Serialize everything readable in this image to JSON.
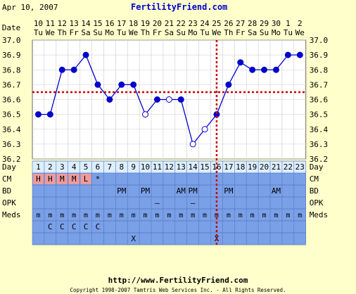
{
  "header": {
    "date": "Apr 10, 2007",
    "site": "FertilityFriend.com"
  },
  "chart_data": {
    "type": "line",
    "title": "",
    "xlabel": "Day",
    "ylabel": "",
    "ylim": [
      36.2,
      37.0
    ],
    "y_ticks": [
      "37.0",
      "36.9",
      "36.8",
      "36.7",
      "36.6",
      "36.5",
      "36.4",
      "36.3",
      "36.2"
    ],
    "dates": [
      "10",
      "11",
      "12",
      "13",
      "14",
      "15",
      "16",
      "17",
      "18",
      "19",
      "20",
      "21",
      "22",
      "23",
      "24",
      "25",
      "26",
      "27",
      "28",
      "29",
      "30",
      "1",
      "2"
    ],
    "weekdays": [
      "Tu",
      "We",
      "Th",
      "Fr",
      "Sa",
      "Su",
      "Mo",
      "Tu",
      "We",
      "Th",
      "Fr",
      "Sa",
      "Su",
      "Mo",
      "Tu",
      "We",
      "Th",
      "Fr",
      "Sa",
      "Su",
      "Mo",
      "Tu",
      "We"
    ],
    "days": [
      "1",
      "2",
      "3",
      "4",
      "5",
      "6",
      "7",
      "8",
      "9",
      "10",
      "11",
      "12",
      "13",
      "14",
      "15",
      "16",
      "17",
      "18",
      "19",
      "20",
      "21",
      "22",
      "23"
    ],
    "temps": [
      36.5,
      36.5,
      36.8,
      36.8,
      36.9,
      36.7,
      36.6,
      36.7,
      36.7,
      36.5,
      36.6,
      36.6,
      36.6,
      36.3,
      36.4,
      36.5,
      36.7,
      36.85,
      36.8,
      36.8,
      36.8,
      36.9,
      36.9
    ],
    "discarded": [
      false,
      false,
      false,
      false,
      false,
      false,
      false,
      false,
      false,
      true,
      false,
      true,
      false,
      true,
      true,
      false,
      false,
      false,
      false,
      false,
      false,
      false,
      false
    ],
    "coverline": 36.65,
    "ovulation_day": 16,
    "rows": [
      {
        "label": "CM",
        "values": [
          "H",
          "H",
          "M",
          "M",
          "L",
          "*",
          "",
          "",
          "",
          "",
          "",
          "",
          "",
          "",
          "",
          "",
          "",
          "",
          "",
          "",
          "",
          "",
          ""
        ]
      },
      {
        "label": "BD",
        "values": [
          "",
          "",
          "",
          "",
          "",
          "",
          "",
          "PM",
          "",
          "PM",
          "",
          "",
          "AM",
          "PM",
          "",
          "",
          "PM",
          "",
          "",
          "",
          "AM",
          "",
          ""
        ]
      },
      {
        "label": "OPK",
        "values": [
          "",
          "",
          "",
          "",
          "",
          "",
          "",
          "",
          "",
          "",
          "–",
          "",
          "",
          "–",
          "",
          "",
          "",
          "",
          "",
          "",
          "",
          "",
          ""
        ]
      },
      {
        "label": "Meds",
        "values": [
          "m",
          "m",
          "m",
          "m",
          "m",
          "m",
          "m",
          "m",
          "m",
          "m",
          "m",
          "m",
          "m",
          "m",
          "m",
          "m",
          "m",
          "m",
          "m",
          "m",
          "m",
          "m",
          "m"
        ]
      },
      {
        "label": "",
        "values": [
          "",
          "C",
          "C",
          "C",
          "C",
          "C",
          "",
          "",
          "",
          "",
          "",
          "",
          "",
          "",
          "",
          "",
          "",
          "",
          "",
          "",
          "",
          "",
          ""
        ]
      },
      {
        "label": "",
        "values": [
          "",
          "",
          "",
          "",
          "",
          "",
          "",
          "",
          "X",
          "",
          "",
          "",
          "",
          "",
          "",
          "X",
          "",
          "",
          "",
          "",
          "",
          "",
          ""
        ]
      }
    ],
    "grid": true
  },
  "colors": {
    "background": "#ffffcc",
    "plot": "#ffffff",
    "grid": "#999999",
    "line": "#0000cc",
    "coverline": "#cc0000",
    "row_fill": "#7aa0e8",
    "day_row_fill": "#ddeeff",
    "cm_fill": "#f09a9a",
    "header_link": "#0000cc"
  },
  "footer": {
    "url": "http://www.FertilityFriend.com",
    "copyright": "Copyright 1998-2007 Tamtris Web Services Inc. - All Rights Reserved."
  }
}
